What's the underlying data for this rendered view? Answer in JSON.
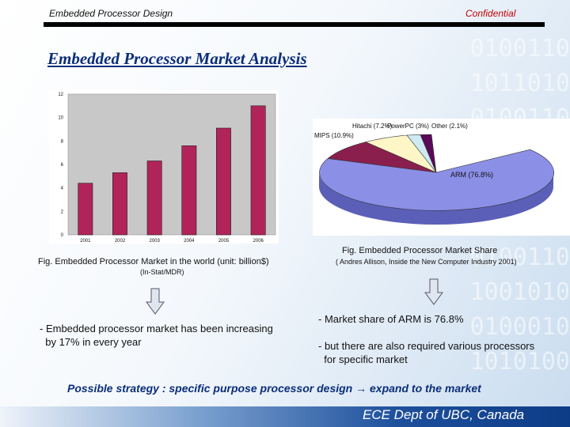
{
  "header": {
    "left": "Embedded Processor Design",
    "right": "Confidential"
  },
  "title": "Embedded Processor Market Analysis",
  "bar_chart_caption": "Fig. Embedded Processor Market in the world (unit: billion$)",
  "bar_chart_source": "(In-Stat/MDR)",
  "pie_chart_caption": "Fig. Embedded Processor Market Share",
  "pie_chart_source": "( Andres Allison, Inside the New Computer Industry 2001)",
  "left_point": [
    "- Embedded processor market has been increasing",
    "  by 17% in every year"
  ],
  "right_point1": "- Market share of ARM is 76.8%",
  "right_point2": [
    "- but there are also required various processors",
    "  for specific market"
  ],
  "strategy": "Possible strategy : specific purpose processor design → expand to the market",
  "footer": "ECE Dept of UBC, Canada",
  "colors": {
    "bar": "#b0245a",
    "title": "#0b2e7a",
    "confidential": "#c00000",
    "arm": "#8b8fe6"
  },
  "chart_data": [
    {
      "type": "bar",
      "categories": [
        "2001",
        "2002",
        "2003",
        "2004",
        "2005",
        "2006"
      ],
      "values": [
        4.4,
        5.3,
        6.3,
        7.6,
        9.1,
        11.0
      ],
      "ylim": [
        0,
        12
      ],
      "yticks": [
        "0",
        "2",
        "4",
        "6",
        "8",
        "10",
        "12"
      ],
      "grid": false
    },
    {
      "type": "pie",
      "labels": [
        "ARM (76.8%)",
        "MIPS (10.9%)",
        "Hitachi (7.2%)",
        "PowerPC (3%)",
        "Other (2.1%)"
      ],
      "values": [
        76.8,
        10.9,
        7.2,
        3.0,
        2.1
      ],
      "colors": [
        "#8b8fe6",
        "#8a1f4e",
        "#fff6c8",
        "#cfeaf2",
        "#5a0a5a"
      ]
    }
  ]
}
